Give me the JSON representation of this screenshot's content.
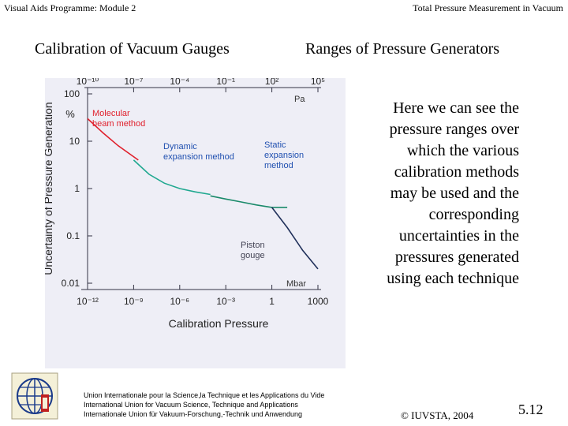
{
  "header": {
    "left": "Visual Aids Programme: Module 2",
    "right": "Total Pressure Measurement in Vacuum"
  },
  "titles": {
    "left": "Calibration of Vacuum Gauges",
    "right": "Ranges of Pressure Generators"
  },
  "description": [
    "Here we can see the",
    "pressure ranges over",
    "which the various",
    "calibration methods",
    "may be used and the",
    "corresponding",
    "uncertainties in the",
    "pressures generated",
    "using each technique"
  ],
  "colors": {
    "molecular": "#e0202c",
    "dynamic": "#20a890",
    "static": "#1a8a6a",
    "piston": "#20305a",
    "axis": "#333344",
    "label": "#2050b0"
  },
  "chart_data": {
    "type": "line",
    "title": "",
    "xlabel": "Calibration Pressure",
    "ylabel": "Uncertainty of Pressure Generation",
    "x_unit": "Mbar",
    "x_top_unit": "Pa",
    "y_unit": "%",
    "x_scale": "log",
    "y_scale": "log",
    "x_ticks": [
      "10⁻¹²",
      "10⁻⁹",
      "10⁻⁶",
      "10⁻³",
      "1",
      "1000"
    ],
    "x_top_ticks": [
      "10⁻¹⁰",
      "10⁻⁷",
      "10⁻⁴",
      "10⁻¹",
      "10²",
      "10⁵"
    ],
    "y_ticks": [
      "100",
      "10",
      "1",
      "0.1",
      "0.01"
    ],
    "xlim": [
      1e-12,
      1000
    ],
    "ylim": [
      0.01,
      100
    ],
    "series": [
      {
        "name": "Molecular beam method",
        "x": [
          1e-12,
          1e-11,
          1e-10,
          2e-09
        ],
        "y": [
          30,
          15,
          8,
          4
        ]
      },
      {
        "name": "Dynamic expansion method",
        "x": [
          1e-09,
          1e-08,
          1e-07,
          1e-06,
          1e-05,
          0.0001
        ],
        "y": [
          4,
          2,
          1.3,
          1.0,
          0.85,
          0.75
        ]
      },
      {
        "name": "Static expansion method",
        "x": [
          0.0001,
          0.001,
          0.01,
          0.1,
          1,
          10
        ],
        "y": [
          0.7,
          0.6,
          0.52,
          0.45,
          0.4,
          0.4
        ]
      },
      {
        "name": "Piston gauge",
        "x": [
          1,
          10,
          100,
          1000
        ],
        "y": [
          0.4,
          0.15,
          0.05,
          0.02
        ]
      }
    ]
  },
  "footer": {
    "org_lines": [
      "Union Internationale pour la Science,la Technique et les Applications du Vide",
      "International Union for Vacuum Science, Technique and Applications",
      "Internationale Union für Vakuum-Forschung,-Technik und Anwendung"
    ],
    "copyright": "© IUVSTA, 2004",
    "slide_number": "5.12"
  }
}
